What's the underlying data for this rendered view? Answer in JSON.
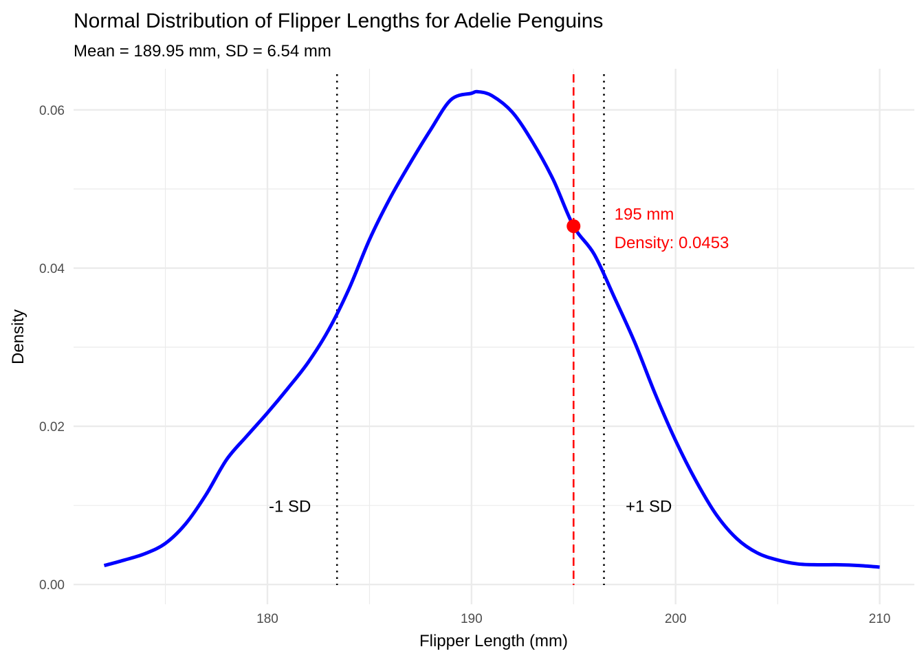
{
  "chart_data": {
    "type": "line",
    "title": "Normal Distribution of Flipper Lengths for Adelie Penguins",
    "subtitle": "Mean = 189.95 mm, SD = 6.54 mm",
    "xlabel": "Flipper Length (mm)",
    "ylabel": "Density",
    "xlim": [
      170.5,
      211.7
    ],
    "ylim": [
      -0.0025,
      0.0652
    ],
    "x_ticks": [
      180,
      190,
      200,
      210
    ],
    "x_tick_labels": [
      "180",
      "190",
      "200",
      "210"
    ],
    "x_minor_ticks": [
      175,
      185,
      195,
      205
    ],
    "y_ticks": [
      0.0,
      0.02,
      0.04,
      0.06
    ],
    "y_tick_labels": [
      "0.00",
      "0.02",
      "0.04",
      "0.06"
    ],
    "y_minor_ticks": [
      0.01,
      0.03,
      0.05
    ],
    "grid": true,
    "series": [
      {
        "color": "#0000ff",
        "x": [
          172,
          173,
          174,
          175,
          176,
          177,
          178,
          179,
          180,
          181,
          182,
          183,
          184,
          185,
          186,
          187,
          188,
          189,
          190,
          190.3,
          191,
          192,
          193,
          194,
          195,
          196,
          197,
          198,
          199,
          200,
          201,
          202,
          203,
          204,
          205,
          206,
          207,
          208,
          209,
          210
        ],
        "y": [
          0.0024,
          0.0031,
          0.0039,
          0.0052,
          0.0077,
          0.0114,
          0.0158,
          0.0188,
          0.0217,
          0.0248,
          0.0281,
          0.0322,
          0.0374,
          0.0436,
          0.0488,
          0.0533,
          0.0575,
          0.0613,
          0.0621,
          0.0623,
          0.0618,
          0.0597,
          0.0559,
          0.0512,
          0.0453,
          0.0418,
          0.0363,
          0.0306,
          0.0241,
          0.0182,
          0.0131,
          0.0088,
          0.0058,
          0.004,
          0.0031,
          0.0026,
          0.0025,
          0.0025,
          0.0024,
          0.0022
        ]
      }
    ],
    "vlines": [
      {
        "x": 183.41,
        "color": "#000000",
        "style": "dotted"
      },
      {
        "x": 196.49,
        "color": "#000000",
        "style": "dotted"
      },
      {
        "x": 195,
        "color": "#ff0000",
        "style": "dashed"
      }
    ],
    "highlight_point": {
      "x": 195,
      "y": 0.0453,
      "color": "#ff0000"
    },
    "annotations": [
      {
        "text": "-1 SD",
        "x": 181.1,
        "y": 0.0099,
        "color": "#000000",
        "anchor": "middle"
      },
      {
        "text": "+1 SD",
        "x": 197.55,
        "y": 0.0099,
        "color": "#000000",
        "anchor": "start"
      },
      {
        "text": "195 mm",
        "x": 197.0,
        "y": 0.0468,
        "color": "#ff0000",
        "anchor": "start"
      },
      {
        "text": "Density: 0.0453",
        "x": 197.0,
        "y": 0.0432,
        "color": "#ff0000",
        "anchor": "start"
      }
    ],
    "colors": {
      "curve": "#0000ff",
      "highlight": "#ff0000",
      "grid": "#ebebeb",
      "reference_lines": "#000000"
    }
  }
}
